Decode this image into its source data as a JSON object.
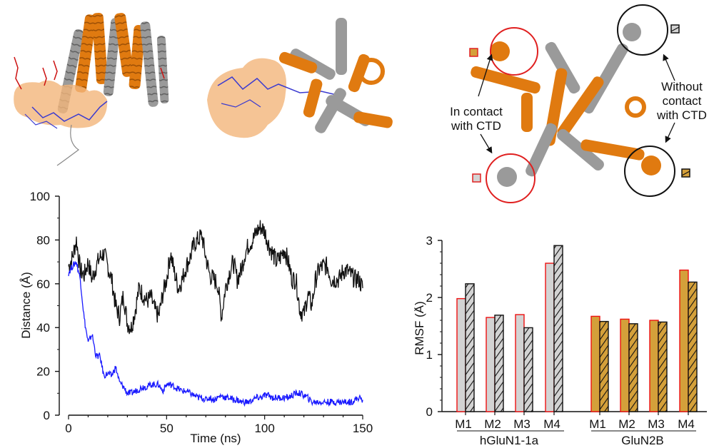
{
  "panels": {
    "structure_side": {
      "description": "Side view of TMD with CTD peptide (orange surface, blue/red sticks)"
    },
    "structure_top": {
      "description": "Top view of TMD with CTD peptide (orange surface, blue sticks)"
    },
    "structure_annotated": {
      "label_in_contact": "In contact with CTD",
      "label_in_contact_line1": "In contact",
      "label_in_contact_line2": "with CTD",
      "label_without_contact_line1": "Without",
      "label_without_contact_line2": "contact",
      "label_without_contact_line3": "with CTD",
      "colors": {
        "glun1": "#9a9a9a",
        "glun2b": "#e07a10",
        "contact_circle": "#e02020",
        "no_contact_circle": "#111111"
      }
    }
  },
  "chart_data": [
    {
      "type": "line",
      "title": "",
      "xlabel": "Time (ns)",
      "ylabel": "Distance (Å)",
      "xlim": [
        0,
        150
      ],
      "ylim": [
        0,
        100
      ],
      "xticks": [
        0,
        50,
        100,
        150
      ],
      "yticks": [
        0,
        20,
        40,
        60,
        80,
        100
      ],
      "grid": false,
      "series": [
        {
          "name": "black trace",
          "color": "#111111",
          "x": [
            0,
            2,
            4,
            6,
            8,
            10,
            12,
            14,
            16,
            18,
            20,
            22,
            24,
            26,
            28,
            30,
            32,
            34,
            36,
            38,
            40,
            42,
            44,
            46,
            48,
            50,
            52,
            54,
            56,
            58,
            60,
            62,
            64,
            66,
            68,
            70,
            72,
            74,
            76,
            78,
            80,
            82,
            84,
            86,
            88,
            90,
            92,
            94,
            96,
            98,
            100,
            102,
            104,
            106,
            108,
            110,
            112,
            114,
            116,
            118,
            120,
            122,
            124,
            126,
            128,
            130,
            132,
            134,
            136,
            138,
            140,
            142,
            144,
            146,
            148,
            150
          ],
          "values": [
            68,
            72,
            80,
            66,
            64,
            70,
            62,
            68,
            72,
            74,
            68,
            62,
            50,
            45,
            55,
            42,
            40,
            48,
            58,
            55,
            52,
            54,
            48,
            45,
            55,
            62,
            74,
            65,
            58,
            62,
            68,
            72,
            78,
            80,
            82,
            72,
            64,
            62,
            60,
            45,
            58,
            65,
            70,
            62,
            66,
            74,
            78,
            80,
            84,
            86,
            84,
            78,
            74,
            70,
            72,
            76,
            70,
            62,
            62,
            48,
            46,
            55,
            50,
            62,
            67,
            68,
            68,
            62,
            62,
            62,
            66,
            66,
            64,
            62,
            62,
            58
          ]
        },
        {
          "name": "blue trace",
          "color": "#1a1aff",
          "x": [
            0,
            2,
            4,
            6,
            8,
            10,
            12,
            14,
            16,
            18,
            20,
            22,
            24,
            26,
            28,
            30,
            32,
            34,
            36,
            38,
            40,
            42,
            44,
            46,
            48,
            50,
            52,
            54,
            56,
            58,
            60,
            62,
            64,
            66,
            68,
            70,
            72,
            74,
            76,
            78,
            80,
            82,
            84,
            86,
            88,
            90,
            92,
            94,
            96,
            98,
            100,
            102,
            104,
            106,
            108,
            110,
            112,
            114,
            116,
            118,
            120,
            122,
            124,
            126,
            128,
            130,
            132,
            134,
            136,
            138,
            140,
            142,
            144,
            146,
            148,
            150
          ],
          "values": [
            65,
            68,
            70,
            62,
            44,
            33,
            37,
            27,
            27,
            18,
            19,
            18,
            22,
            15,
            13,
            10,
            10,
            11,
            12,
            13,
            13,
            14,
            14,
            14,
            11,
            14,
            14,
            13,
            12,
            11,
            11,
            10,
            9,
            8,
            8,
            7,
            8,
            7,
            8,
            9,
            8,
            8,
            7,
            7,
            6,
            6,
            6,
            7,
            8,
            8,
            9,
            9,
            8,
            8,
            8,
            8,
            8,
            9,
            10,
            10,
            9,
            8,
            6,
            6,
            6,
            6,
            6,
            6,
            6,
            6,
            6,
            6,
            6,
            7,
            8,
            7
          ]
        }
      ]
    },
    {
      "type": "bar",
      "title": "",
      "xlabel": "",
      "ylabel": "RMSF (Å)",
      "ylim": [
        0,
        3
      ],
      "yticks": [
        0,
        1,
        2,
        3
      ],
      "grid": false,
      "groups": [
        "hGluN1-1a",
        "GluN2B"
      ],
      "categories": [
        "M1",
        "M2",
        "M3",
        "M4",
        "M1",
        "M2",
        "M3",
        "M4"
      ],
      "series": [
        {
          "name": "In contact with CTD",
          "style": "solid, red outline",
          "values": [
            1.98,
            1.65,
            1.7,
            2.6,
            1.67,
            1.62,
            1.6,
            2.48
          ]
        },
        {
          "name": "Without contact with CTD",
          "style": "hatched, black outline",
          "values": [
            2.24,
            1.69,
            1.47,
            2.91,
            1.58,
            1.54,
            1.57,
            2.27
          ]
        }
      ],
      "group_colors": {
        "hGluN1-1a": "#d3d3d3",
        "GluN2B": "#d4a03a"
      },
      "outline_colors": {
        "contact": "#ee1111",
        "no_contact": "#111111"
      }
    }
  ],
  "line_chart": {
    "xlabel": "Time (ns)",
    "ylabel": "Distance (Å)",
    "xticklabels": [
      "0",
      "50",
      "100",
      "150"
    ],
    "yticklabels": [
      "0",
      "20",
      "40",
      "60",
      "80",
      "100"
    ]
  },
  "bar_chart": {
    "ylabel": "RMSF (Å)",
    "yticklabels": [
      "0",
      "1",
      "2",
      "3"
    ],
    "catlabels": [
      "M1",
      "M2",
      "M3",
      "M4",
      "M1",
      "M2",
      "M3",
      "M4"
    ],
    "group1": "hGluN1-1a",
    "group2": "GluN2B"
  }
}
